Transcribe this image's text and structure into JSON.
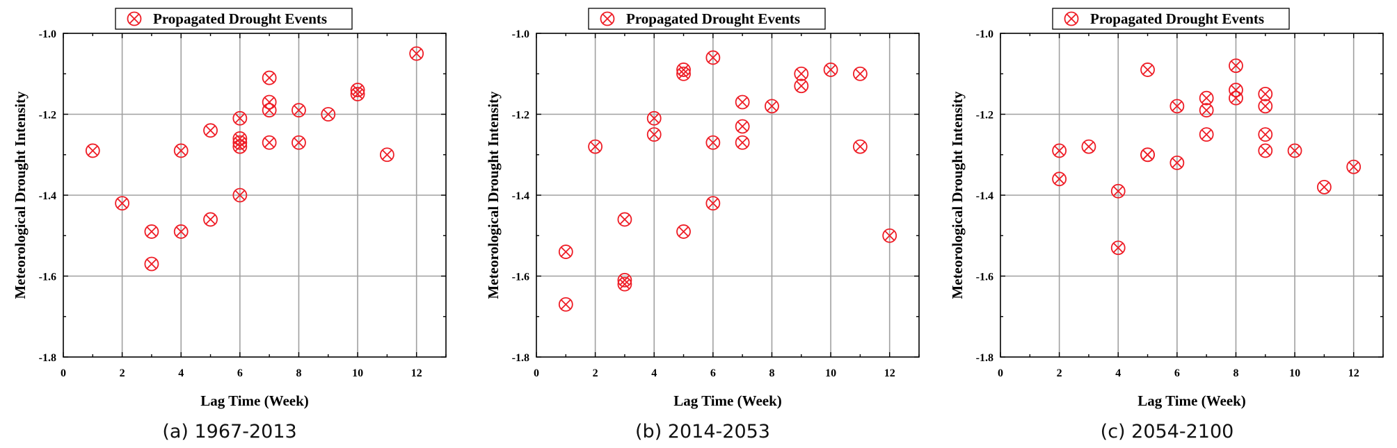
{
  "chart_data": [
    {
      "type": "scatter",
      "caption": "(a) 1967-2013",
      "xlabel": "Lag Time (Week)",
      "ylabel": "Meteorological Drought Intensity",
      "legend": "Propagated Drought Events",
      "legend_position": "top",
      "marker": "circle-x",
      "color": "#ee1c25",
      "grid": true,
      "xlim": [
        0,
        13
      ],
      "ylim": [
        -1.8,
        -1.0
      ],
      "xticks": [
        "0",
        "2",
        "4",
        "6",
        "8",
        "10",
        "12"
      ],
      "yticks": [
        "-1.0",
        "-1.2",
        "-1.4",
        "-1.6",
        "-1.8"
      ],
      "points": [
        [
          1,
          -1.29
        ],
        [
          2,
          -1.42
        ],
        [
          3,
          -1.49
        ],
        [
          3,
          -1.57
        ],
        [
          4,
          -1.29
        ],
        [
          4,
          -1.49
        ],
        [
          5,
          -1.24
        ],
        [
          5,
          -1.46
        ],
        [
          6,
          -1.21
        ],
        [
          6,
          -1.26
        ],
        [
          6,
          -1.27
        ],
        [
          6,
          -1.28
        ],
        [
          6,
          -1.4
        ],
        [
          7,
          -1.11
        ],
        [
          7,
          -1.17
        ],
        [
          7,
          -1.19
        ],
        [
          7,
          -1.27
        ],
        [
          8,
          -1.19
        ],
        [
          8,
          -1.27
        ],
        [
          9,
          -1.2
        ],
        [
          10,
          -1.14
        ],
        [
          10,
          -1.15
        ],
        [
          11,
          -1.3
        ],
        [
          12,
          -1.05
        ]
      ]
    },
    {
      "type": "scatter",
      "caption": "(b) 2014-2053",
      "xlabel": "Lag Time (Week)",
      "ylabel": "Meteorological Drought Intensity",
      "legend": "Propagated Drought Events",
      "legend_position": "top",
      "marker": "circle-x",
      "color": "#ee1c25",
      "grid": true,
      "xlim": [
        0,
        13
      ],
      "ylim": [
        -1.8,
        -1.0
      ],
      "xticks": [
        "0",
        "2",
        "4",
        "6",
        "8",
        "10",
        "12"
      ],
      "yticks": [
        "-1.0",
        "-1.2",
        "-1.4",
        "-1.6",
        "-1.8"
      ],
      "points": [
        [
          1,
          -1.54
        ],
        [
          1,
          -1.67
        ],
        [
          2,
          -1.28
        ],
        [
          3,
          -1.46
        ],
        [
          3,
          -1.61
        ],
        [
          3,
          -1.62
        ],
        [
          4,
          -1.21
        ],
        [
          4,
          -1.25
        ],
        [
          5,
          -1.09
        ],
        [
          5,
          -1.1
        ],
        [
          5,
          -1.49
        ],
        [
          6,
          -1.06
        ],
        [
          6,
          -1.27
        ],
        [
          6,
          -1.42
        ],
        [
          7,
          -1.17
        ],
        [
          7,
          -1.23
        ],
        [
          7,
          -1.27
        ],
        [
          8,
          -1.18
        ],
        [
          9,
          -1.1
        ],
        [
          9,
          -1.13
        ],
        [
          10,
          -1.09
        ],
        [
          11,
          -1.1
        ],
        [
          11,
          -1.28
        ],
        [
          12,
          -1.5
        ]
      ]
    },
    {
      "type": "scatter",
      "caption": "(c) 2054-2100",
      "xlabel": "Lag Time (Week)",
      "ylabel": "Meteorological Drought Intensity",
      "legend": "Propagated Drought Events",
      "legend_position": "top",
      "marker": "circle-x",
      "color": "#ee1c25",
      "grid": true,
      "xlim": [
        0,
        13
      ],
      "ylim": [
        -1.8,
        -1.0
      ],
      "xticks": [
        "0",
        "2",
        "4",
        "6",
        "8",
        "10",
        "12"
      ],
      "yticks": [
        "-1.0",
        "-1.2",
        "-1.4",
        "-1.6",
        "-1.8"
      ],
      "points": [
        [
          2,
          -1.29
        ],
        [
          2,
          -1.36
        ],
        [
          3,
          -1.28
        ],
        [
          4,
          -1.39
        ],
        [
          4,
          -1.53
        ],
        [
          5,
          -1.09
        ],
        [
          5,
          -1.3
        ],
        [
          5,
          -1.3
        ],
        [
          6,
          -1.18
        ],
        [
          6,
          -1.32
        ],
        [
          7,
          -1.16
        ],
        [
          7,
          -1.19
        ],
        [
          7,
          -1.25
        ],
        [
          8,
          -1.08
        ],
        [
          8,
          -1.14
        ],
        [
          8,
          -1.16
        ],
        [
          9,
          -1.15
        ],
        [
          9,
          -1.18
        ],
        [
          9,
          -1.25
        ],
        [
          9,
          -1.29
        ],
        [
          10,
          -1.29
        ],
        [
          11,
          -1.38
        ],
        [
          12,
          -1.33
        ]
      ]
    }
  ]
}
